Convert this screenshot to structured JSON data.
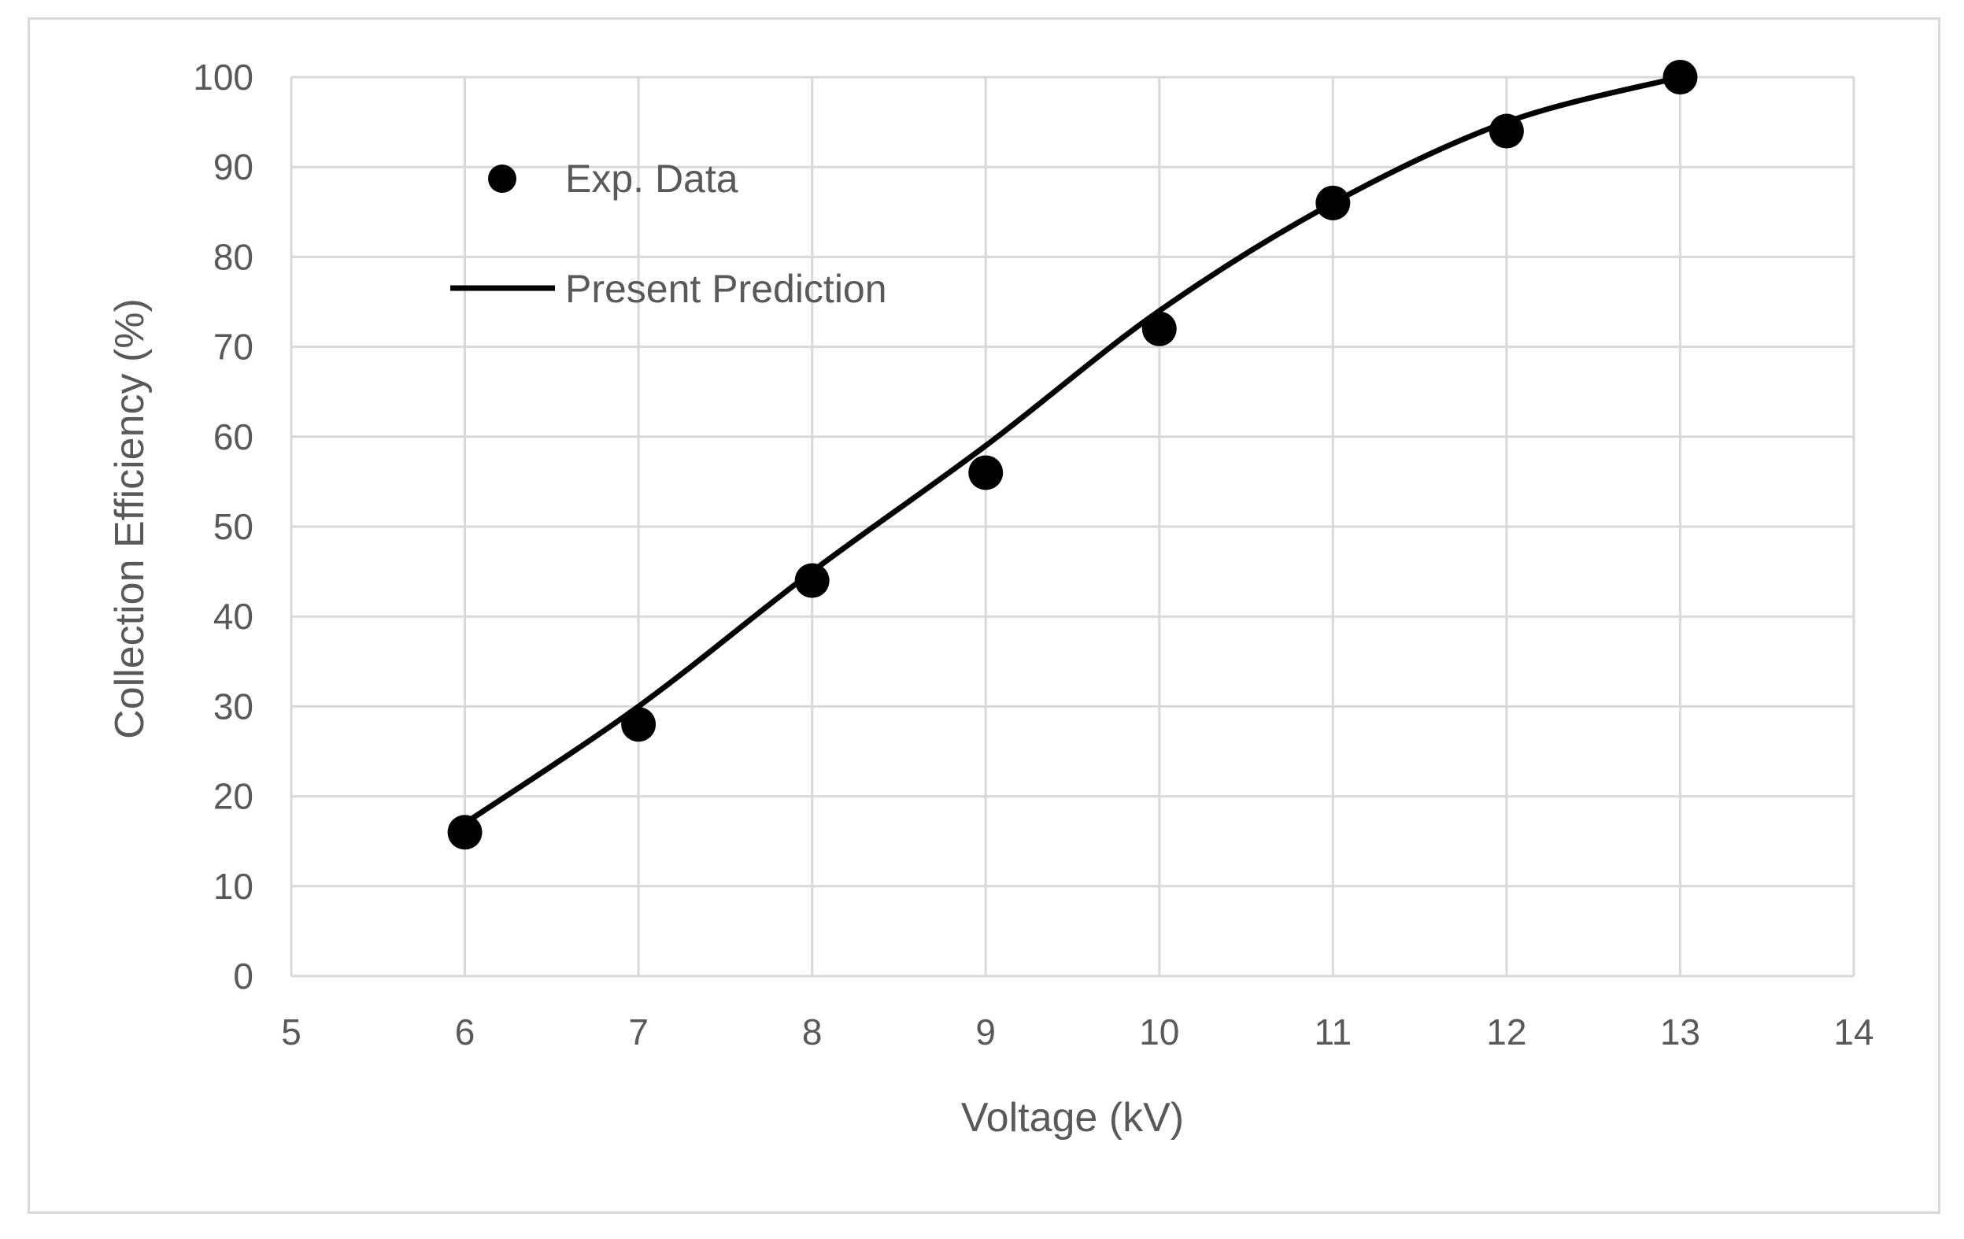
{
  "chart_data": {
    "type": "scatter",
    "title": "",
    "xlabel": "Voltage (kV)",
    "ylabel": "Collection Efficiency (%)",
    "xlim": [
      5,
      14
    ],
    "ylim": [
      0,
      100
    ],
    "x_ticks": [
      5,
      6,
      7,
      8,
      9,
      10,
      11,
      12,
      13,
      14
    ],
    "y_ticks": [
      0,
      10,
      20,
      30,
      40,
      50,
      60,
      70,
      80,
      90,
      100
    ],
    "grid": true,
    "legend_position": "top-left",
    "series": [
      {
        "name": "Exp. Data",
        "kind": "scatter",
        "marker": "circle",
        "color": "#000000",
        "x": [
          6,
          7,
          8,
          9,
          10,
          11,
          12,
          13
        ],
        "y": [
          16,
          28,
          44,
          56,
          72,
          86,
          94,
          100
        ]
      },
      {
        "name": "Present Prediction",
        "kind": "line",
        "color": "#000000",
        "x": [
          6,
          7,
          8,
          9,
          10,
          11,
          12,
          13
        ],
        "y": [
          17,
          30,
          45,
          59,
          74,
          86,
          95,
          100
        ]
      }
    ]
  },
  "colors": {
    "grid": "#d9d9d9",
    "text": "#595959",
    "series": "#000000"
  }
}
